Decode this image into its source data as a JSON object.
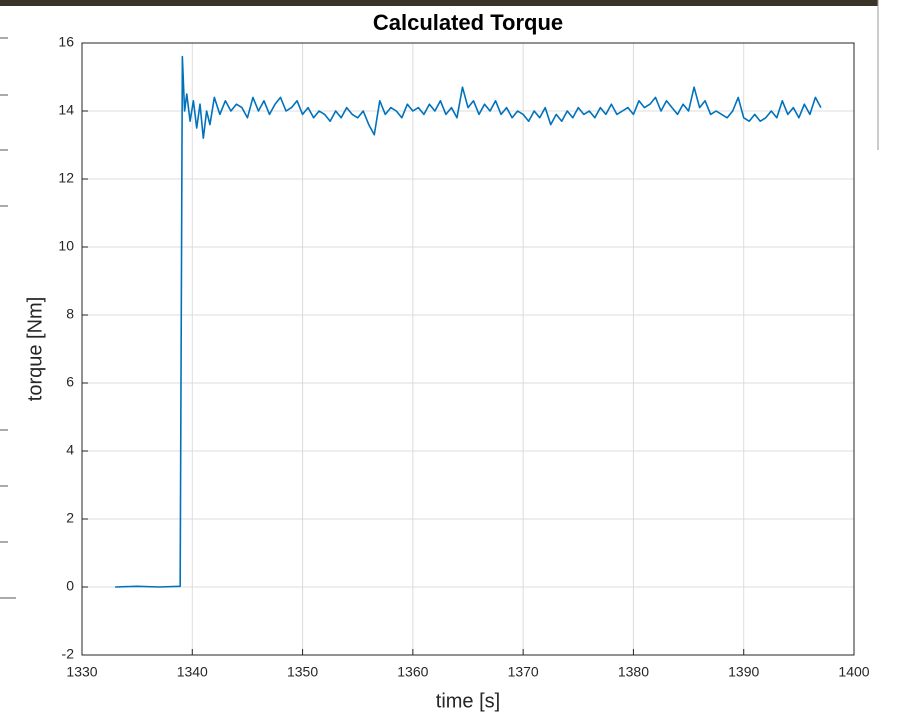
{
  "chart_data": {
    "type": "line",
    "title": "Calculated Torque",
    "x_label": "time [s]",
    "y_label": "torque [Nm]",
    "color": "#0072bd",
    "grid": true,
    "xlim": [
      1330,
      1400
    ],
    "xticks": [
      1330,
      1340,
      1350,
      1360,
      1370,
      1380,
      1390,
      1400
    ],
    "ylim": [
      -2,
      16
    ],
    "yticks": [
      -2,
      0,
      2,
      4,
      6,
      8,
      10,
      12,
      14,
      16
    ],
    "x": [
      1333,
      1335,
      1337,
      1338.9,
      1339.1,
      1339.3,
      1339.5,
      1339.8,
      1340.1,
      1340.4,
      1340.7,
      1341,
      1341.3,
      1341.6,
      1342,
      1342.5,
      1343,
      1343.5,
      1344,
      1344.5,
      1345,
      1345.5,
      1346,
      1346.5,
      1347,
      1347.5,
      1348,
      1348.5,
      1349,
      1349.5,
      1350,
      1350.5,
      1351,
      1351.5,
      1352,
      1352.5,
      1353,
      1353.5,
      1354,
      1354.5,
      1355,
      1355.5,
      1356,
      1356.5,
      1357,
      1357.5,
      1358,
      1358.5,
      1359,
      1359.5,
      1360,
      1360.5,
      1361,
      1361.5,
      1362,
      1362.5,
      1363,
      1363.5,
      1364,
      1364.5,
      1365,
      1365.5,
      1366,
      1366.5,
      1367,
      1367.5,
      1368,
      1368.5,
      1369,
      1369.5,
      1370,
      1370.5,
      1371,
      1371.5,
      1372,
      1372.5,
      1373,
      1373.5,
      1374,
      1374.5,
      1375,
      1375.5,
      1376,
      1376.5,
      1377,
      1377.5,
      1378,
      1378.5,
      1379,
      1379.5,
      1380,
      1380.5,
      1381,
      1381.5,
      1382,
      1382.5,
      1383,
      1383.5,
      1384,
      1384.5,
      1385,
      1385.5,
      1386,
      1386.5,
      1387,
      1387.5,
      1388,
      1388.5,
      1389,
      1389.5,
      1390,
      1390.5,
      1391,
      1391.5,
      1392,
      1392.5,
      1393,
      1393.5,
      1394,
      1394.5,
      1395,
      1395.5,
      1396,
      1396.5,
      1397
    ],
    "values": [
      0,
      0.02,
      0,
      0.02,
      15.6,
      14.0,
      14.5,
      13.7,
      14.3,
      13.5,
      14.2,
      13.2,
      14.0,
      13.6,
      14.4,
      13.9,
      14.3,
      14.0,
      14.2,
      14.1,
      13.8,
      14.4,
      14.0,
      14.3,
      13.9,
      14.2,
      14.4,
      14.0,
      14.1,
      14.3,
      13.9,
      14.1,
      13.8,
      14.0,
      13.9,
      13.7,
      14.0,
      13.8,
      14.1,
      13.9,
      13.8,
      14.0,
      13.6,
      13.3,
      14.3,
      13.9,
      14.1,
      14.0,
      13.8,
      14.2,
      14.0,
      14.1,
      13.9,
      14.2,
      14.0,
      14.3,
      13.9,
      14.1,
      13.8,
      14.7,
      14.1,
      14.3,
      13.9,
      14.2,
      14.0,
      14.3,
      13.9,
      14.1,
      13.8,
      14.0,
      13.9,
      13.7,
      14.0,
      13.8,
      14.1,
      13.6,
      13.9,
      13.7,
      14.0,
      13.8,
      14.1,
      13.9,
      14.0,
      13.8,
      14.1,
      13.9,
      14.2,
      13.9,
      14.0,
      14.1,
      13.9,
      14.3,
      14.1,
      14.2,
      14.4,
      14.0,
      14.3,
      14.1,
      13.9,
      14.2,
      14.0,
      14.7,
      14.1,
      14.3,
      13.9,
      14.0,
      13.9,
      13.8,
      14.0,
      14.4,
      13.8,
      13.7,
      13.9,
      13.7,
      13.8,
      14.0,
      13.8,
      14.3,
      13.9,
      14.1,
      13.8,
      14.2,
      13.9,
      14.4,
      14.1
    ]
  }
}
